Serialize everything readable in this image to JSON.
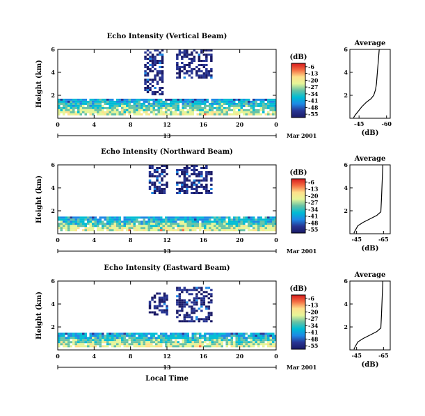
{
  "figure": {
    "x_axis_title": "Local Time",
    "colorbar_unit": "(dB)",
    "colorbar_ticks": [
      "-6",
      "-13",
      "-20",
      "-27",
      "-34",
      "-41",
      "-48",
      "-55"
    ],
    "colorbar_colors": [
      "#d7191c",
      "#f46d43",
      "#fee08b",
      "#e6f598",
      "#66c2a5",
      "#00bcd4",
      "#1e88e5",
      "#283593",
      "#1a1a66"
    ],
    "date_label": "Mar 2001",
    "day_label": "13",
    "y_axis_title": "Height (km)",
    "profile_x_label": "(dB)",
    "profile_title": "Average"
  },
  "chart_data": [
    {
      "type": "heatmap",
      "title": "Echo Intensity (Vertical Beam)",
      "xlabel": "Local Time",
      "ylabel": "Height (km)",
      "xlim": [
        0,
        24
      ],
      "ylim": [
        0,
        6
      ],
      "x_ticks": [
        "0",
        "4",
        "8",
        "12",
        "16",
        "20",
        "0"
      ],
      "y_ticks": [
        "2",
        "4",
        "6"
      ],
      "colorbar": {
        "unit": "dB",
        "range": [
          -55,
          -6
        ],
        "ticks": [
          -6,
          -13,
          -20,
          -27,
          -34,
          -41,
          -48,
          -55
        ]
      },
      "date": "Mar 2001",
      "day": "13",
      "layers": [
        {
          "name": "boundary-layer",
          "x_range": [
            0,
            24
          ],
          "base_km": 0.3,
          "top_km": 1.7,
          "level_db": -40
        },
        {
          "name": "upper-echo-a",
          "x_range": [
            9.5,
            11.5
          ],
          "base_km": 2.0,
          "top_km": 6.0,
          "level_db": -52
        },
        {
          "name": "upper-echo-b",
          "x_range": [
            13.0,
            17.0
          ],
          "base_km": 3.5,
          "top_km": 6.0,
          "level_db": -52
        }
      ],
      "profile": {
        "title": "Average",
        "xlabel": "(dB)",
        "x_ticks": [
          "-45",
          "-60"
        ],
        "xlim": [
          -40,
          -62
        ],
        "y_ticks": [
          "2",
          "4",
          "6"
        ],
        "ylim": [
          0,
          6
        ],
        "points": [
          [
            -42,
            0.05
          ],
          [
            -43,
            0.3
          ],
          [
            -44.5,
            0.6
          ],
          [
            -46.5,
            1.0
          ],
          [
            -49,
            1.4
          ],
          [
            -51.5,
            1.7
          ],
          [
            -53,
            2.0
          ],
          [
            -54,
            2.5
          ],
          [
            -54.5,
            3.0
          ],
          [
            -55,
            4.0
          ],
          [
            -55.5,
            5.0
          ],
          [
            -56,
            6.0
          ]
        ]
      }
    },
    {
      "type": "heatmap",
      "title": "Echo Intensity (Northward Beam)",
      "xlabel": "Local Time",
      "ylabel": "Height (km)",
      "xlim": [
        0,
        24
      ],
      "ylim": [
        0,
        6
      ],
      "x_ticks": [
        "0",
        "4",
        "8",
        "12",
        "16",
        "20",
        "0"
      ],
      "y_ticks": [
        "2",
        "4",
        "6"
      ],
      "colorbar": {
        "unit": "dB",
        "range": [
          -55,
          -6
        ],
        "ticks": [
          -6,
          -13,
          -20,
          -27,
          -34,
          -41,
          -48,
          -55
        ]
      },
      "date": "Mar 2001",
      "day": "13",
      "layers": [
        {
          "name": "boundary-layer",
          "x_range": [
            0,
            24
          ],
          "base_km": 0.3,
          "top_km": 1.5,
          "level_db": -40
        },
        {
          "name": "upper-echo-a",
          "x_range": [
            10.0,
            12.0
          ],
          "base_km": 3.5,
          "top_km": 6.0,
          "level_db": -52
        },
        {
          "name": "upper-echo-b",
          "x_range": [
            13.0,
            17.0
          ],
          "base_km": 3.5,
          "top_km": 6.0,
          "level_db": -52
        }
      ],
      "profile": {
        "title": "Average",
        "xlabel": "(dB)",
        "x_ticks": [
          "-45",
          "-65"
        ],
        "xlim": [
          -40,
          -70
        ],
        "y_ticks": [
          "2",
          "4",
          "6"
        ],
        "ylim": [
          0,
          6
        ],
        "points": [
          [
            -43,
            0.05
          ],
          [
            -44,
            0.3
          ],
          [
            -46,
            0.7
          ],
          [
            -50,
            1.0
          ],
          [
            -55,
            1.3
          ],
          [
            -60,
            1.6
          ],
          [
            -63,
            1.9
          ],
          [
            -63.5,
            3.0
          ],
          [
            -64,
            4.5
          ],
          [
            -64.5,
            6.0
          ]
        ]
      }
    },
    {
      "type": "heatmap",
      "title": "Echo Intensity (Eastward Beam)",
      "xlabel": "Local Time",
      "ylabel": "Height (km)",
      "xlim": [
        0,
        24
      ],
      "ylim": [
        0,
        6
      ],
      "x_ticks": [
        "0",
        "4",
        "8",
        "12",
        "16",
        "20",
        "0"
      ],
      "y_ticks": [
        "2",
        "4",
        "6"
      ],
      "colorbar": {
        "unit": "dB",
        "range": [
          -55,
          -6
        ],
        "ticks": [
          -6,
          -13,
          -20,
          -27,
          -34,
          -41,
          -48,
          -55
        ]
      },
      "date": "Mar 2001",
      "day": "13",
      "layers": [
        {
          "name": "boundary-layer",
          "x_range": [
            0,
            24
          ],
          "base_km": 0.3,
          "top_km": 1.5,
          "level_db": -40
        },
        {
          "name": "upper-echo-a",
          "x_range": [
            10.0,
            12.0
          ],
          "base_km": 3.0,
          "top_km": 5.0,
          "level_db": -52
        },
        {
          "name": "upper-echo-b",
          "x_range": [
            13.0,
            17.0
          ],
          "base_km": 2.5,
          "top_km": 5.5,
          "level_db": -52
        }
      ],
      "profile": {
        "title": "Average",
        "xlabel": "(dB)",
        "x_ticks": [
          "-45",
          "-65"
        ],
        "xlim": [
          -40,
          -70
        ],
        "y_ticks": [
          "2",
          "4",
          "6"
        ],
        "ylim": [
          0,
          6
        ],
        "points": [
          [
            -43,
            0.05
          ],
          [
            -44,
            0.3
          ],
          [
            -46,
            0.7
          ],
          [
            -50,
            1.0
          ],
          [
            -55,
            1.3
          ],
          [
            -60,
            1.6
          ],
          [
            -63,
            1.9
          ],
          [
            -63.5,
            3.0
          ],
          [
            -64,
            4.5
          ],
          [
            -64.5,
            6.0
          ]
        ]
      }
    }
  ]
}
